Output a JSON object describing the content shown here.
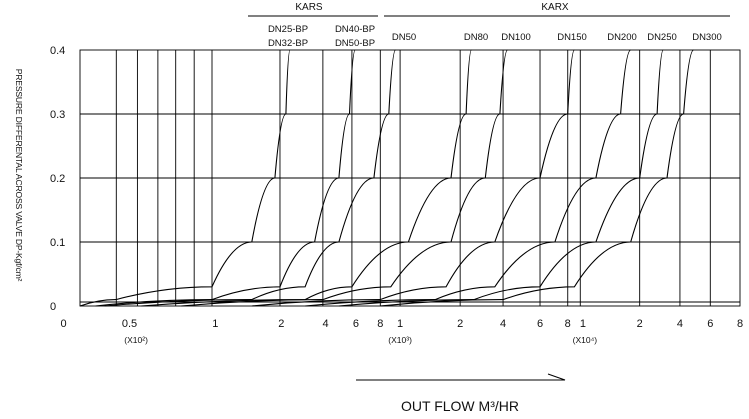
{
  "chart_data": {
    "type": "line",
    "title": "",
    "ylabel": "PRESSURE DIFFERENTAL ACROSS VALVE DP-Kgf/cm²",
    "xlabel": "OUT FLOW M³/HR",
    "ylim": [
      0,
      0.4
    ],
    "yticks": [
      "0",
      "0.1",
      "0.2",
      "0.3",
      "0.4"
    ],
    "x_scale": "log",
    "xlim": [
      0,
      800000
    ],
    "xticks": [
      "0",
      "0.5",
      "1",
      "2",
      "4",
      "6",
      "8",
      "1",
      "2",
      "4",
      "6",
      "8",
      "1",
      "2",
      "4",
      "6",
      "8"
    ],
    "x_multipliers": [
      {
        "label": "(X10²)",
        "sup": "2"
      },
      {
        "label": "(X10³)",
        "sup": "3"
      },
      {
        "label": "(X10⁴)",
        "sup": "4"
      }
    ],
    "groups": [
      {
        "name": "KARS"
      },
      {
        "name": "KARX"
      }
    ],
    "series": [
      {
        "name": "DN25-BP",
        "group": "KARS",
        "x": [
          10,
          50,
          100,
          150,
          190,
          220,
          235
        ],
        "y": [
          0,
          0.01,
          0.03,
          0.1,
          0.2,
          0.3,
          0.4
        ]
      },
      {
        "name": "DN32-BP",
        "group": "KARS",
        "x": [
          10,
          50,
          100,
          150,
          190,
          220,
          235
        ],
        "y": [
          0,
          0.01,
          0.03,
          0.1,
          0.2,
          0.3,
          0.4
        ]
      },
      {
        "name": "DN40-BP",
        "group": "KARS",
        "x": [
          20,
          100,
          200,
          350,
          500,
          580,
          620
        ],
        "y": [
          0,
          0.01,
          0.03,
          0.1,
          0.2,
          0.3,
          0.4
        ]
      },
      {
        "name": "DN50-BP",
        "group": "KARS",
        "x": [
          20,
          100,
          200,
          350,
          500,
          580,
          620
        ],
        "y": [
          0,
          0.01,
          0.03,
          0.1,
          0.2,
          0.3,
          0.4
        ]
      },
      {
        "name": "DN50",
        "group": "KARX",
        "x": [
          30,
          150,
          300,
          500,
          750,
          880,
          950
        ],
        "y": [
          0,
          0.01,
          0.03,
          0.1,
          0.2,
          0.3,
          0.4
        ]
      },
      {
        "name": "DN80",
        "group": "KARX",
        "x": [
          60,
          300,
          600,
          1100,
          1800,
          2200,
          2400
        ],
        "y": [
          0,
          0.01,
          0.03,
          0.1,
          0.2,
          0.3,
          0.4
        ]
      },
      {
        "name": "DN100",
        "group": "KARX",
        "x": [
          80,
          400,
          900,
          1800,
          3000,
          3800,
          4200
        ],
        "y": [
          0,
          0.01,
          0.03,
          0.1,
          0.2,
          0.3,
          0.4
        ]
      },
      {
        "name": "DN150",
        "group": "KARX",
        "x": [
          150,
          800,
          1700,
          3500,
          6000,
          8000,
          9000
        ],
        "y": [
          0,
          0.01,
          0.03,
          0.1,
          0.2,
          0.3,
          0.4
        ]
      },
      {
        "name": "DN200",
        "group": "KARX",
        "x": [
          300,
          1500,
          3500,
          7000,
          12000,
          16000,
          18000
        ],
        "y": [
          0,
          0.01,
          0.03,
          0.1,
          0.2,
          0.3,
          0.4
        ]
      },
      {
        "name": "DN250",
        "group": "KARX",
        "x": [
          500,
          2500,
          6000,
          12000,
          20000,
          27000,
          30000
        ],
        "y": [
          0,
          0.01,
          0.03,
          0.1,
          0.2,
          0.3,
          0.4
        ]
      },
      {
        "name": "DN300",
        "group": "KARX",
        "x": [
          800,
          4000,
          9000,
          18000,
          32000,
          42000,
          48000
        ],
        "y": [
          0,
          0.01,
          0.03,
          0.1,
          0.2,
          0.3,
          0.4
        ]
      }
    ],
    "grid": true,
    "legend": "top"
  }
}
